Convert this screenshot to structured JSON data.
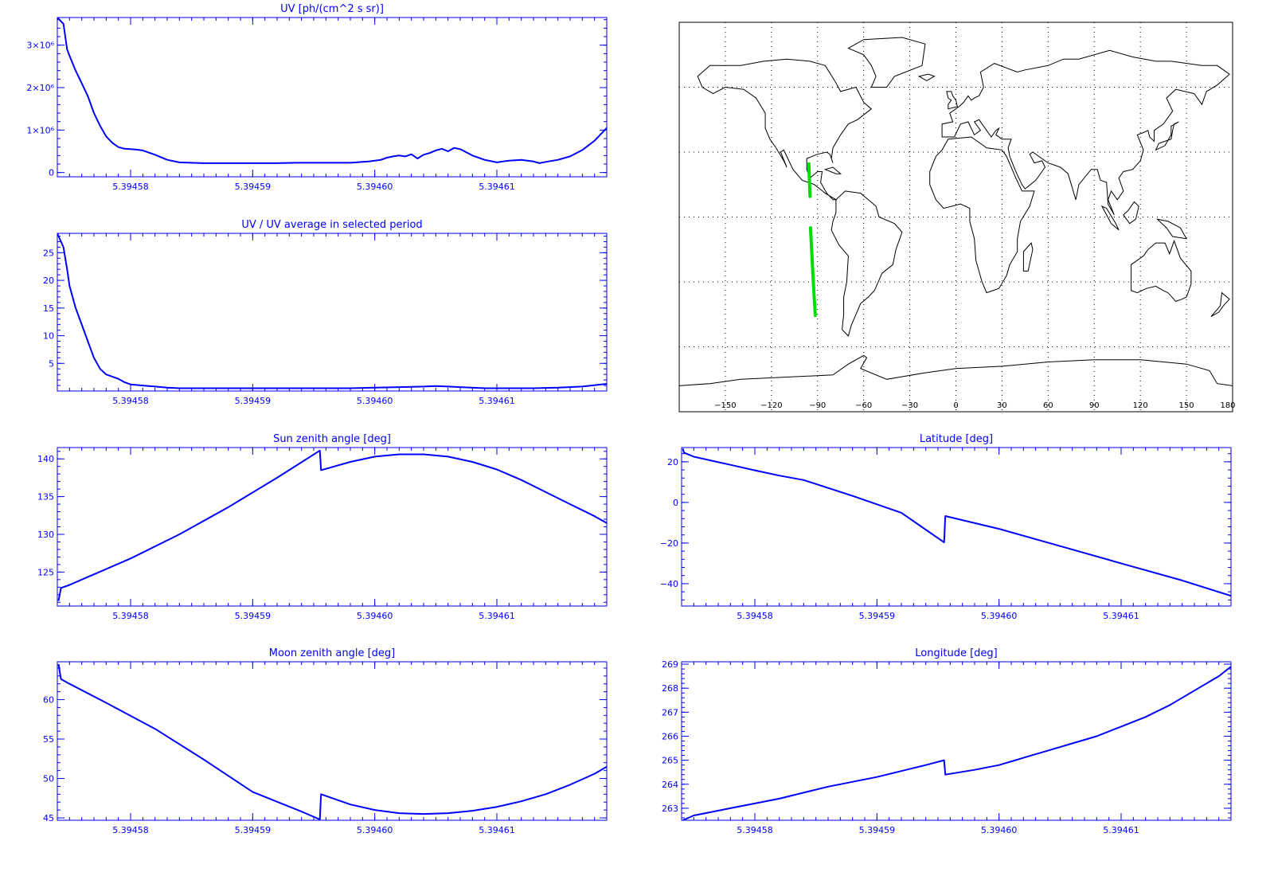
{
  "colors": {
    "axis": "#0000ff",
    "line": "#0000ff",
    "track": "#00dd00",
    "coast": "#000000",
    "background": "#ffffff"
  },
  "chart_data": [
    {
      "id": "uv",
      "type": "line",
      "title": "UV [ph/(cm^2 s sr)]",
      "xlabel": "",
      "ylabel": "",
      "xlim": [
        5.394574,
        5.394619
      ],
      "ylim": [
        -100000,
        3650000
      ],
      "x_ticks": [
        "5.39458",
        "5.39459",
        "5.39460",
        "5.39461"
      ],
      "y_ticks": [
        "0",
        "1×10⁶",
        "2×10⁶",
        "3×10⁶"
      ],
      "series": [
        {
          "x": [
            5.394574,
            5.3945745,
            5.3945748,
            5.394575,
            5.3945755,
            5.394576,
            5.3945765,
            5.394577,
            5.3945775,
            5.394578,
            5.3945785,
            5.394579,
            5.3945795,
            5.39458,
            5.3945805,
            5.394581,
            5.394582,
            5.394583,
            5.394584,
            5.394586,
            5.394588,
            5.39459,
            5.394592,
            5.3945935,
            5.394595,
            5.3945965,
            5.394598,
            5.3945985,
            5.394599,
            5.3945995,
            5.3946,
            5.3946005,
            5.394601,
            5.3946015,
            5.394602,
            5.3946025,
            5.394603,
            5.3946035,
            5.394604,
            5.3946045,
            5.394605,
            5.3946055,
            5.394606,
            5.3946065,
            5.394607,
            5.394608,
            5.394609,
            5.39461,
            5.394611,
            5.394612,
            5.394613,
            5.3946135,
            5.394614,
            5.394615,
            5.394616,
            5.394617,
            5.394618,
            5.394619
          ],
          "y": [
            3650000,
            3500000,
            2900000,
            2750000,
            2400000,
            2100000,
            1800000,
            1400000,
            1100000,
            850000,
            700000,
            600000,
            560000,
            550000,
            540000,
            520000,
            420000,
            300000,
            240000,
            220000,
            220000,
            220000,
            220000,
            230000,
            230000,
            230000,
            230000,
            240000,
            250000,
            260000,
            280000,
            300000,
            350000,
            380000,
            400000,
            380000,
            430000,
            330000,
            420000,
            460000,
            520000,
            560000,
            500000,
            580000,
            550000,
            400000,
            300000,
            240000,
            280000,
            300000,
            260000,
            220000,
            250000,
            300000,
            380000,
            530000,
            750000,
            1050000
          ]
        }
      ]
    },
    {
      "id": "uv-ratio",
      "type": "line",
      "title": "UV / UV average in selected period",
      "xlabel": "",
      "ylabel": "",
      "xlim": [
        5.394574,
        5.394619
      ],
      "ylim": [
        0,
        28.5
      ],
      "x_ticks": [
        "5.39458",
        "5.39459",
        "5.39460",
        "5.39461"
      ],
      "y_ticks": [
        "5",
        "10",
        "15",
        "20",
        "25"
      ],
      "series": [
        {
          "x": [
            5.394574,
            5.3945745,
            5.3945748,
            5.394575,
            5.3945755,
            5.394576,
            5.3945765,
            5.394577,
            5.3945775,
            5.394578,
            5.3945785,
            5.394579,
            5.3945795,
            5.39458,
            5.394581,
            5.394582,
            5.394583,
            5.394584,
            5.394586,
            5.39459,
            5.394595,
            5.394598,
            5.3946,
            5.394602,
            5.394604,
            5.394605,
            5.394606,
            5.394607,
            5.394609,
            5.394611,
            5.394613,
            5.394615,
            5.394617,
            5.394619
          ],
          "y": [
            28.5,
            26,
            22,
            19,
            15,
            12,
            9,
            6,
            4,
            3,
            2.6,
            2.2,
            1.6,
            1.2,
            1.0,
            0.8,
            0.6,
            0.5,
            0.5,
            0.5,
            0.5,
            0.5,
            0.6,
            0.7,
            0.8,
            0.9,
            0.8,
            0.7,
            0.5,
            0.5,
            0.5,
            0.6,
            0.8,
            1.3
          ]
        }
      ]
    },
    {
      "id": "sun-zenith",
      "type": "line",
      "title": "Sun zenith angle [deg]",
      "xlabel": "",
      "ylabel": "",
      "xlim": [
        5.394574,
        5.394619
      ],
      "ylim": [
        120.5,
        141.5
      ],
      "x_ticks": [
        "5.39458",
        "5.39459",
        "5.39460",
        "5.39461"
      ],
      "y_ticks": [
        "125",
        "130",
        "135",
        "140"
      ],
      "series": [
        {
          "x": [
            5.3945741,
            5.3945743,
            5.394575,
            5.394576,
            5.39458,
            5.394584,
            5.394588,
            5.394592,
            5.3945955,
            5.3945956,
            5.394598,
            5.3946,
            5.394602,
            5.394604,
            5.394606,
            5.394608,
            5.39461,
            5.394612,
            5.394614,
            5.394616,
            5.394618,
            5.394619
          ],
          "y": [
            121.2,
            122.9,
            123.3,
            124.0,
            126.8,
            130.0,
            133.6,
            137.5,
            141.1,
            138.5,
            139.6,
            140.3,
            140.6,
            140.6,
            140.3,
            139.6,
            138.6,
            137.2,
            135.6,
            134.0,
            132.4,
            131.5
          ]
        }
      ]
    },
    {
      "id": "latitude",
      "type": "line",
      "title": "Latitude [deg]",
      "xlabel": "",
      "ylabel": "",
      "xlim": [
        5.394574,
        5.394619
      ],
      "ylim": [
        -51,
        27
      ],
      "x_ticks": [
        "5.39458",
        "5.39459",
        "5.39460",
        "5.39461"
      ],
      "y_ticks": [
        "20",
        "0",
        "−20",
        "−40"
      ],
      "series": [
        {
          "x": [
            5.3945741,
            5.3945742,
            5.394575,
            5.394578,
            5.39458,
            5.394582,
            5.394584,
            5.394588,
            5.394592,
            5.3945955,
            5.3945956,
            5.3946,
            5.394605,
            5.39461,
            5.394615,
            5.394619
          ],
          "y": [
            26.5,
            24.5,
            22.5,
            18.5,
            15.8,
            13.2,
            11.0,
            3.2,
            -5.1,
            -19.7,
            -6.7,
            -13.0,
            -21.5,
            -30.0,
            -38.4,
            -46.0
          ]
        }
      ]
    },
    {
      "id": "moon-zenith",
      "type": "line",
      "title": "Moon zenith angle [deg]",
      "xlabel": "",
      "ylabel": "",
      "xlim": [
        5.394574,
        5.394619
      ],
      "ylim": [
        44.7,
        64.8
      ],
      "x_ticks": [
        "5.39458",
        "5.39459",
        "5.39460",
        "5.39461"
      ],
      "y_ticks": [
        "45",
        "50",
        "55",
        "60"
      ],
      "series": [
        {
          "x": [
            5.3945741,
            5.3945743,
            5.394575,
            5.394578,
            5.394582,
            5.394586,
            5.39459,
            5.394594,
            5.3945955,
            5.3945956,
            5.394598,
            5.3946,
            5.394602,
            5.394604,
            5.394606,
            5.394608,
            5.39461,
            5.394612,
            5.394614,
            5.394616,
            5.394618,
            5.394619
          ],
          "y": [
            64.5,
            62.6,
            62.0,
            59.6,
            56.3,
            52.4,
            48.3,
            45.8,
            44.8,
            48.0,
            46.7,
            46.0,
            45.6,
            45.5,
            45.6,
            45.9,
            46.4,
            47.1,
            48.0,
            49.2,
            50.6,
            51.5
          ]
        }
      ]
    },
    {
      "id": "longitude",
      "type": "line",
      "title": "Longitude [deg]",
      "xlabel": "",
      "ylabel": "",
      "xlim": [
        5.394574,
        5.394619
      ],
      "ylim": [
        262.5,
        269.1
      ],
      "x_ticks": [
        "5.39458",
        "5.39459",
        "5.39460",
        "5.39461"
      ],
      "y_ticks": [
        "263",
        "264",
        "265",
        "266",
        "267",
        "268",
        "269"
      ],
      "series": [
        {
          "x": [
            5.3945741,
            5.394575,
            5.394578,
            5.394582,
            5.394586,
            5.39459,
            5.394594,
            5.3945955,
            5.3945956,
            5.394598,
            5.3946,
            5.394602,
            5.394604,
            5.394606,
            5.394608,
            5.39461,
            5.394612,
            5.394614,
            5.394616,
            5.394618,
            5.394619
          ],
          "y": [
            262.5,
            262.7,
            263.0,
            263.4,
            263.9,
            264.3,
            264.8,
            265.0,
            264.4,
            264.6,
            264.8,
            265.1,
            265.4,
            265.7,
            266.0,
            266.4,
            266.8,
            267.3,
            267.9,
            268.5,
            268.9
          ]
        }
      ]
    }
  ],
  "map": {
    "lon_ticks": [
      "−150",
      "−120",
      "−90",
      "−60",
      "−30",
      "0",
      "30",
      "60",
      "90",
      "120",
      "150",
      "180"
    ],
    "track": [
      [
        [
          -95.6,
          24.5
        ],
        [
          -95.3,
          17.0
        ],
        [
          -94.9,
          9.5
        ]
      ],
      [
        [
          -94.6,
          -5.0
        ],
        [
          -94.0,
          -13.0
        ],
        [
          -93.4,
          -21.0
        ],
        [
          -92.8,
          -29.0
        ],
        [
          -92.2,
          -37.0
        ],
        [
          -91.5,
          -45.5
        ]
      ]
    ]
  }
}
